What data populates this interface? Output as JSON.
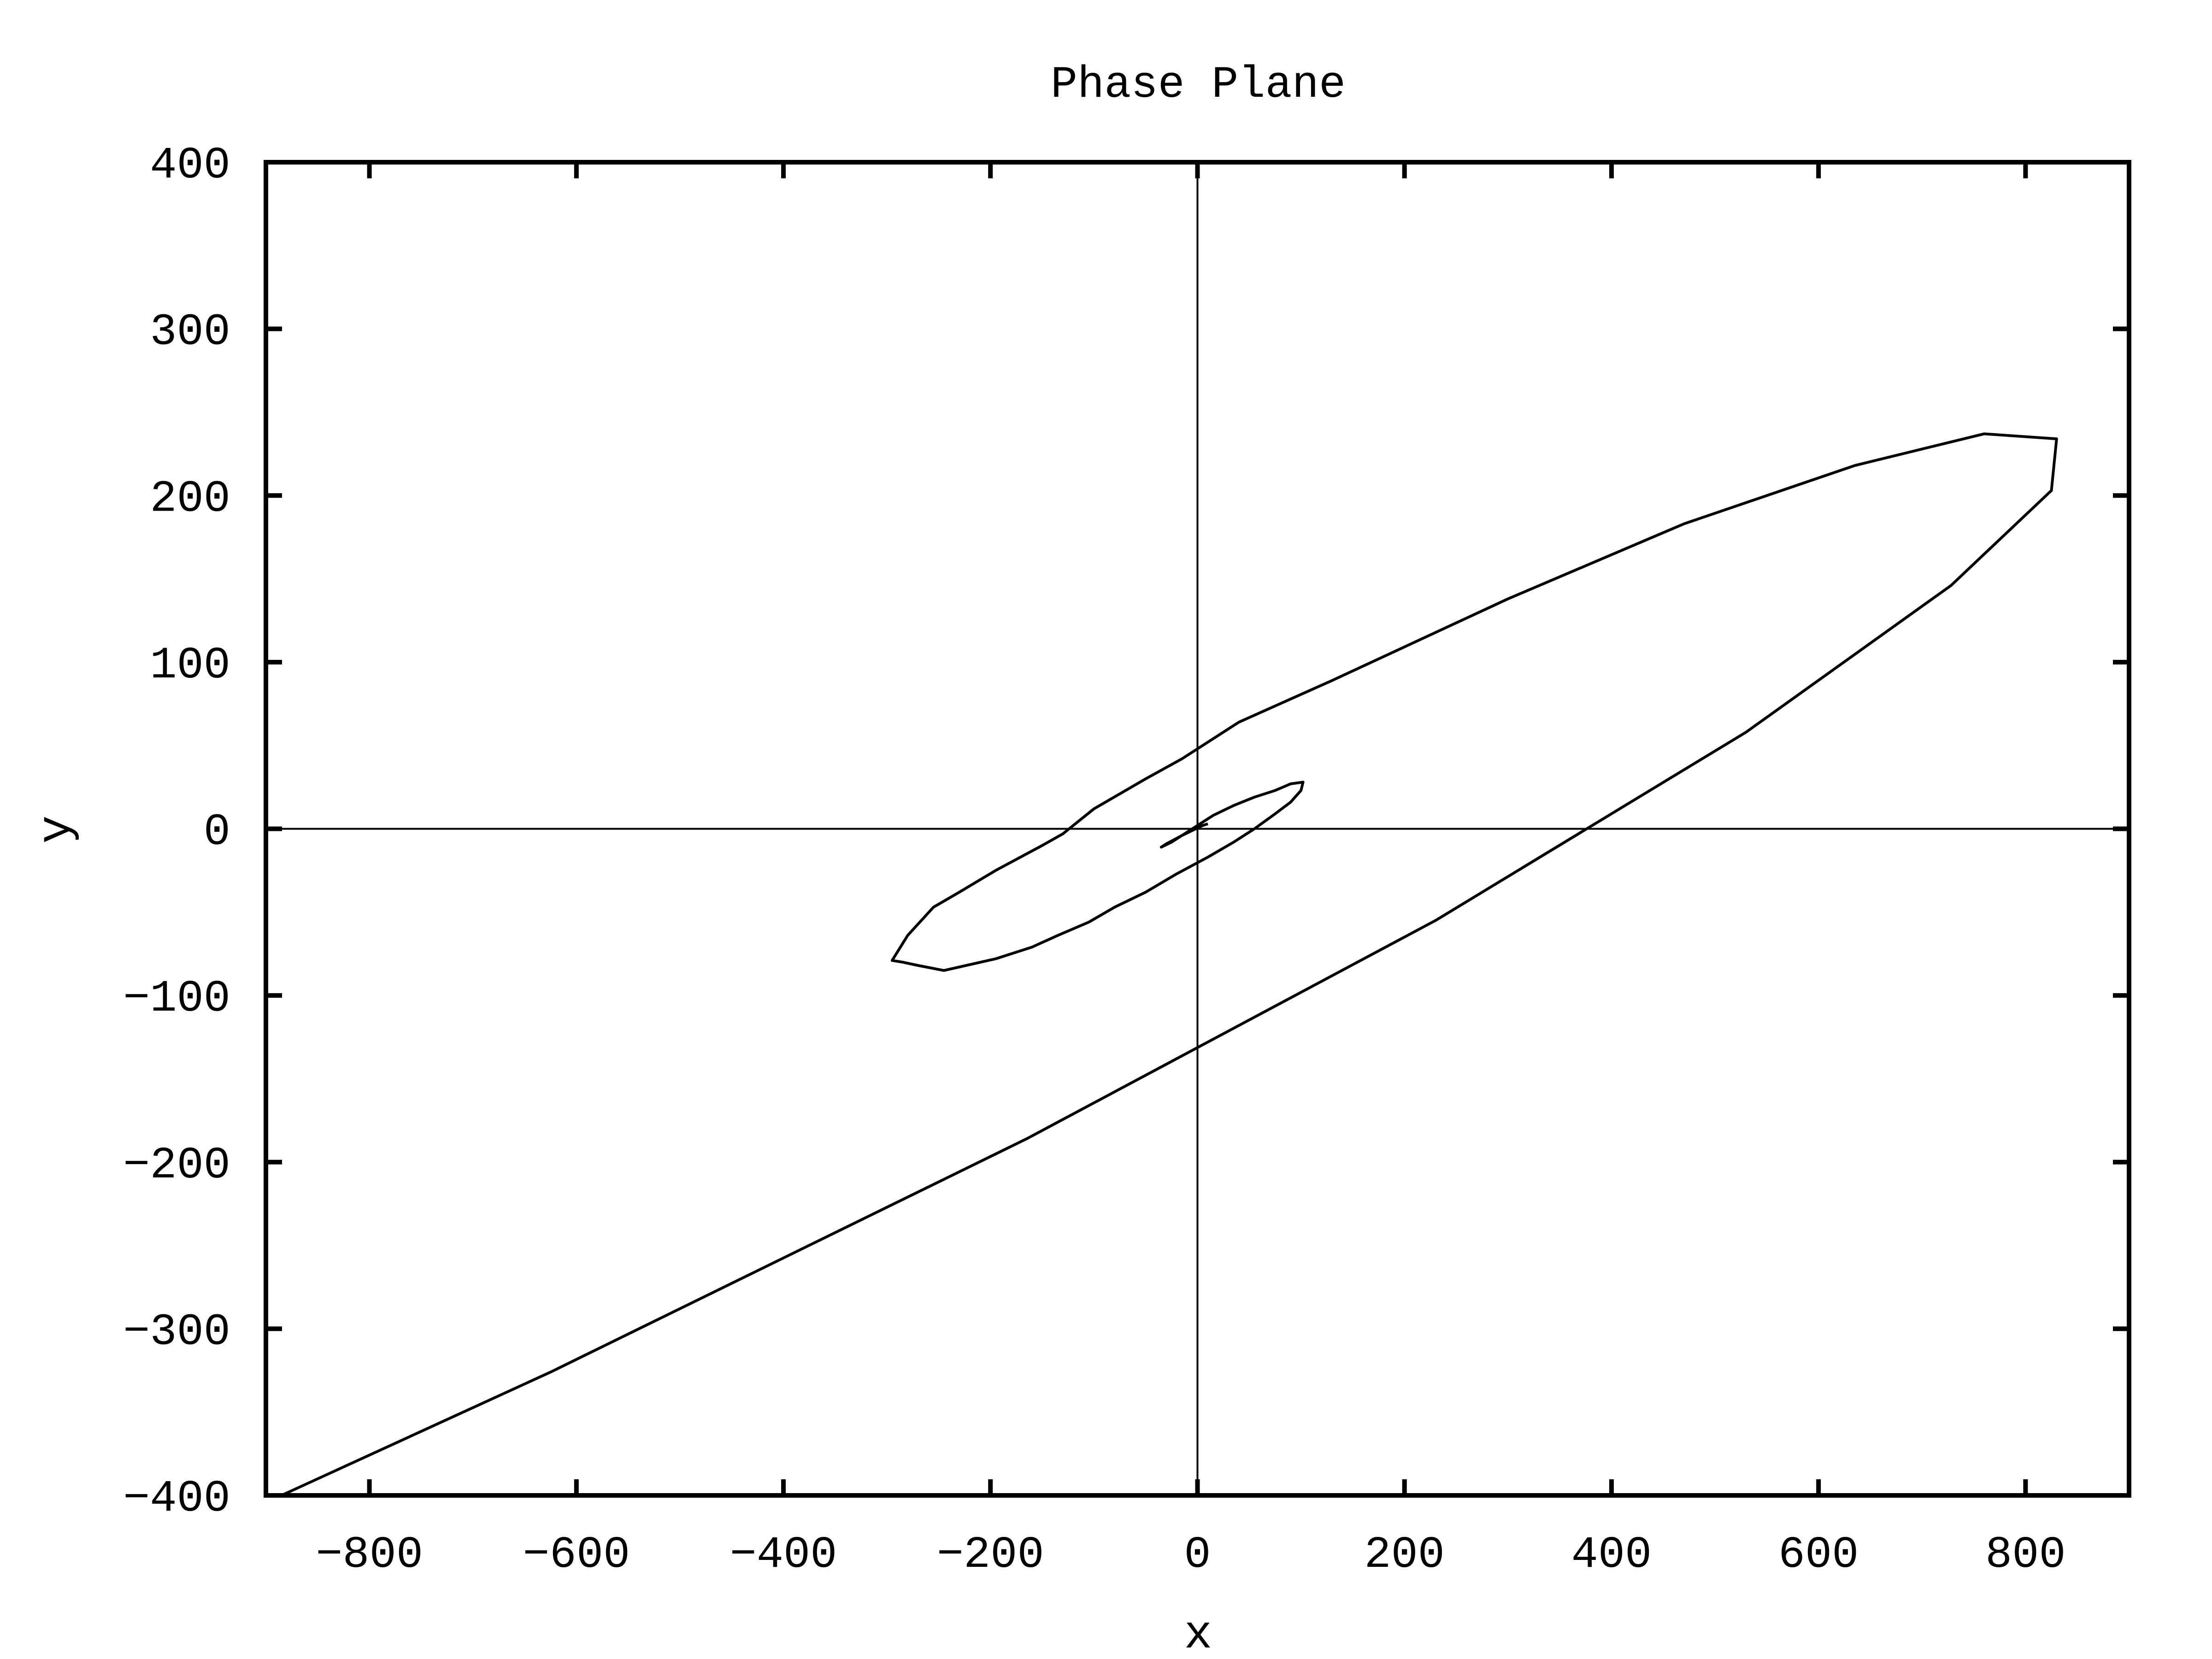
{
  "chart_data": {
    "type": "line",
    "title": "Phase Plane",
    "xlabel": "x",
    "ylabel": "y",
    "xlim": [
      -900,
      900
    ],
    "ylim": [
      -400,
      400
    ],
    "grid": false,
    "legend": "none",
    "zero_axes": true,
    "xticks": [
      -800,
      -600,
      -400,
      -200,
      0,
      200,
      400,
      600,
      800
    ],
    "yticks": [
      -400,
      -300,
      -200,
      -100,
      0,
      100,
      200,
      300,
      400
    ],
    "xtick_labels": [
      "−800",
      "−600",
      "−400",
      "−200",
      "0",
      "200",
      "400",
      "600",
      "800"
    ],
    "ytick_labels": [
      "−400",
      "−300",
      "−200",
      "−100",
      "0",
      "100",
      "200",
      "300",
      "400"
    ],
    "series": [
      {
        "color": "#000000",
        "x": [
          10,
          5,
          -5,
          -15,
          -25,
          -35,
          -30,
          -15,
          0,
          15,
          35,
          55,
          75,
          90,
          102,
          100,
          90,
          75,
          55,
          35,
          10,
          -20,
          -50,
          -80,
          -105,
          -135,
          -160,
          -195,
          -245,
          -270,
          -285,
          -295,
          -280,
          -255,
          -230,
          -195,
          -150,
          -130,
          -100,
          -50,
          -15,
          40,
          130,
          300,
          470,
          635,
          760,
          830,
          825,
          728,
          530,
          230,
          -165,
          -625,
          -885
        ],
        "y": [
          3,
          2,
          -1,
          -4,
          -8,
          -11,
          -9,
          -4,
          2,
          8,
          14,
          19,
          23,
          27,
          28,
          23,
          16,
          9,
          0,
          -8,
          -17,
          -27,
          -38,
          -47,
          -56,
          -64,
          -71,
          -78,
          -85,
          -82,
          -80,
          -79,
          -64,
          -47,
          -38,
          -25,
          -10,
          -3,
          12,
          30,
          42,
          64,
          89,
          138,
          183,
          218,
          237,
          234,
          203,
          146,
          58,
          -55,
          -186,
          -326,
          -400
        ]
      }
    ]
  }
}
